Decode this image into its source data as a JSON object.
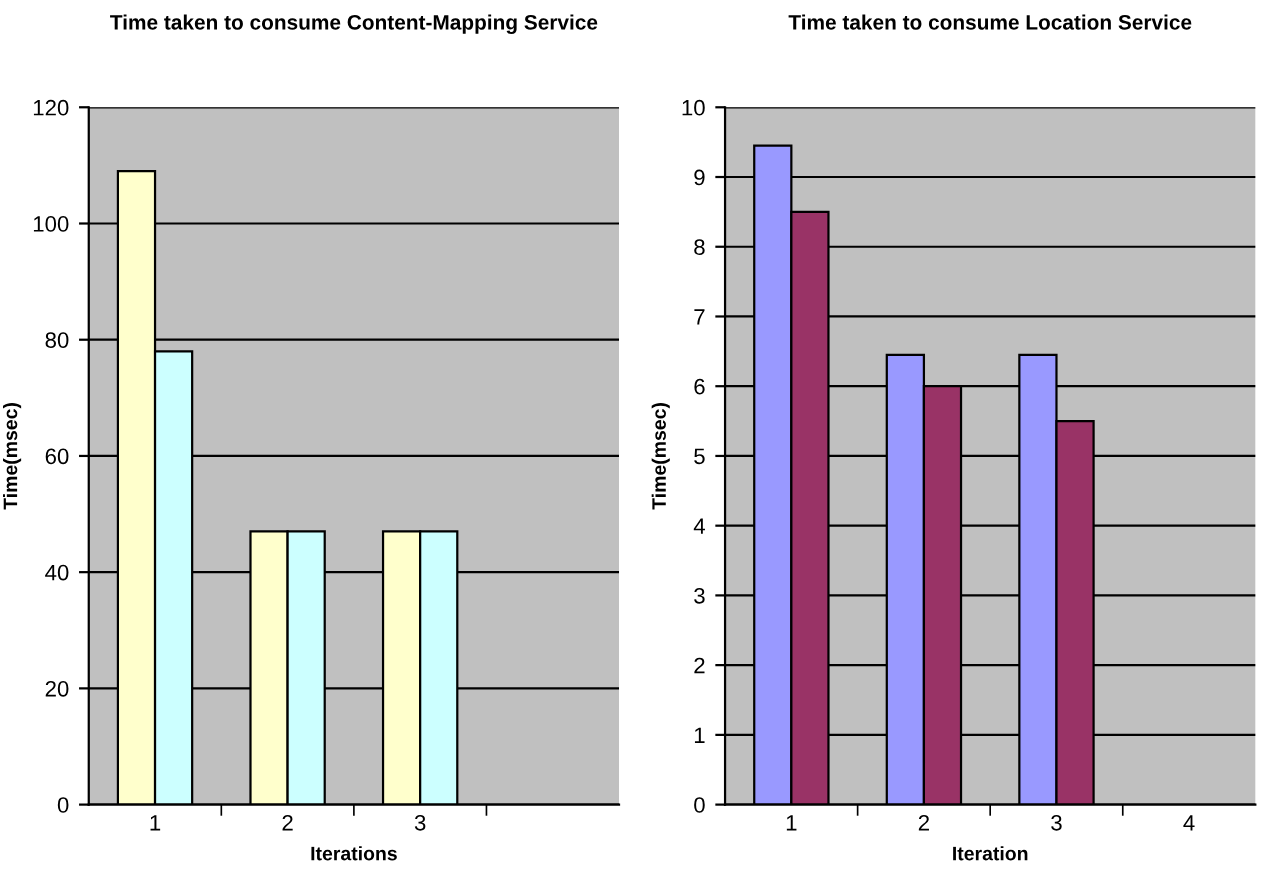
{
  "chart_data": [
    {
      "type": "bar",
      "title": "Time taken to consume Content-Mapping Service",
      "xlabel": "Iterations",
      "ylabel": "Time(msec)",
      "categories": [
        "1",
        "2",
        "3",
        null
      ],
      "ylim": [
        0,
        120
      ],
      "yticks": [
        0,
        20,
        40,
        60,
        80,
        100,
        120
      ],
      "grid": "y",
      "series": [
        {
          "color": "#ffffcc",
          "values": [
            109,
            47,
            47,
            null
          ]
        },
        {
          "color": "#ccffff",
          "values": [
            78,
            47,
            47,
            null
          ]
        }
      ]
    },
    {
      "type": "bar",
      "title": "Time taken to consume Location Service",
      "xlabel": "Iteration",
      "ylabel": "Time(msec)",
      "categories": [
        "1",
        "2",
        "3",
        "4"
      ],
      "ylim": [
        0,
        10
      ],
      "yticks": [
        0,
        1,
        2,
        3,
        4,
        5,
        6,
        7,
        8,
        9,
        10
      ],
      "grid": "y",
      "series": [
        {
          "color": "#9999ff",
          "values": [
            9.45,
            6.45,
            6.45,
            null
          ]
        },
        {
          "color": "#993366",
          "values": [
            8.5,
            6.0,
            5.5,
            null
          ]
        }
      ]
    }
  ]
}
